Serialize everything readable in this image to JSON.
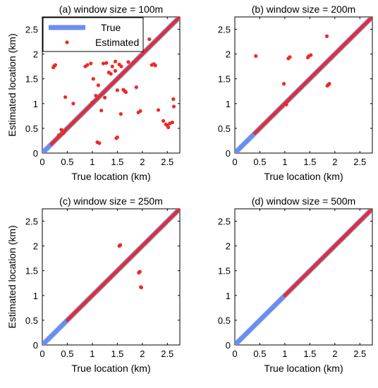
{
  "chart_data": [
    {
      "type": "scatter",
      "title": "(a) window size = 100m",
      "xlabel": "True location (km)",
      "ylabel": "Estimated location (km)",
      "xlim": [
        0,
        2.75
      ],
      "ylim": [
        0,
        2.75
      ],
      "xticks": [
        "0",
        "0.5",
        "1",
        "1.5",
        "2",
        "2.5"
      ],
      "yticks": [
        "0",
        "0.5",
        "1",
        "1.5",
        "2",
        "2.5"
      ],
      "legend": {
        "position": "top-left",
        "entries": [
          "True",
          "Estimated"
        ]
      },
      "true_line": {
        "name": "True",
        "x": [
          0,
          2.75
        ],
        "y": [
          0,
          2.75
        ],
        "color": "#6c8ef0"
      },
      "estimated_diagonal_segments": [
        [
          0.18,
          2.75
        ]
      ],
      "estimated_points": {
        "name": "Estimated",
        "color": "#ee2a24",
        "x": [
          0.22,
          0.24,
          0.26,
          0.33,
          0.38,
          0.46,
          0.62,
          0.86,
          0.9,
          0.97,
          1.02,
          1.07,
          1.1,
          1.18,
          1.22,
          1.28,
          1.33,
          1.4,
          1.46,
          1.5,
          1.54,
          1.58,
          1.62,
          1.65,
          1.67,
          1.57,
          1.5,
          1.48,
          1.25,
          1.46,
          1.14,
          1.72,
          1.88,
          1.92,
          1.96,
          2.14,
          2.19,
          2.23,
          2.26,
          2.32,
          2.42,
          2.47,
          2.5,
          2.52,
          2.55,
          2.6,
          2.62,
          2.63,
          1.0,
          0.42,
          1.12,
          1.37
        ],
        "y": [
          1.73,
          1.76,
          1.78,
          0.36,
          0.47,
          1.13,
          1.0,
          1.75,
          1.78,
          1.81,
          1.5,
          1.16,
          0.22,
          0.86,
          1.81,
          1.82,
          1.63,
          1.75,
          1.85,
          1.27,
          1.79,
          1.75,
          1.28,
          1.25,
          1.23,
          0.79,
          0.32,
          0.3,
          1.12,
          1.66,
          0.2,
          1.84,
          1.33,
          0.82,
          0.85,
          2.3,
          1.78,
          1.8,
          1.77,
          0.87,
          0.65,
          0.58,
          0.56,
          0.52,
          0.6,
          0.62,
          1.09,
          0.94,
          1.02,
          0.4,
          1.37,
          1.6
        ]
      }
    },
    {
      "type": "scatter",
      "title": "(b) window size = 200m",
      "xlabel": "True location (km)",
      "ylabel": "",
      "xlim": [
        0,
        2.75
      ],
      "ylim": [
        0,
        2.75
      ],
      "xticks": [
        "0",
        "0.5",
        "1",
        "1.5",
        "2",
        "2.5"
      ],
      "yticks": [
        "0",
        "0.5",
        "1",
        "1.5",
        "2",
        "2.5"
      ],
      "true_line": {
        "x": [
          0,
          2.75
        ],
        "y": [
          0,
          2.75
        ],
        "color": "#6c8ef0"
      },
      "estimated_diagonal_segments": [
        [
          0.4,
          2.75
        ]
      ],
      "estimated_points": {
        "color": "#ee2a24",
        "x": [
          0.42,
          0.98,
          1.03,
          1.05,
          1.07,
          1.1,
          1.46,
          1.48,
          1.52,
          1.84,
          1.85,
          1.87,
          1.89
        ],
        "y": [
          1.96,
          1.4,
          0.98,
          1.05,
          1.91,
          1.94,
          1.93,
          1.96,
          1.98,
          2.36,
          1.36,
          1.38,
          1.4
        ]
      }
    },
    {
      "type": "scatter",
      "title": "(c) window size = 250m",
      "xlabel": "True location (km)",
      "ylabel": "Estimated location (km)",
      "xlim": [
        0,
        2.75
      ],
      "ylim": [
        0,
        2.75
      ],
      "xticks": [
        "0",
        "0.5",
        "1",
        "1.5",
        "2",
        "2.5"
      ],
      "yticks": [
        "0",
        "0.5",
        "1",
        "1.5",
        "2",
        "2.5"
      ],
      "true_line": {
        "x": [
          0,
          2.75
        ],
        "y": [
          0,
          2.75
        ],
        "color": "#6c8ef0"
      },
      "estimated_diagonal_segments": [
        [
          0.5,
          2.75
        ]
      ],
      "estimated_points": {
        "color": "#ee2a24",
        "x": [
          1.54,
          1.56,
          1.93,
          1.95,
          1.97,
          1.98
        ],
        "y": [
          2.0,
          2.02,
          1.46,
          1.48,
          1.17,
          1.16
        ]
      }
    },
    {
      "type": "scatter",
      "title": "(d) window size = 500m",
      "xlabel": "True location (km)",
      "ylabel": "",
      "xlim": [
        0,
        2.75
      ],
      "ylim": [
        0,
        2.75
      ],
      "xticks": [
        "0",
        "0.5",
        "1",
        "1.5",
        "2",
        "2.5"
      ],
      "yticks": [
        "0",
        "0.5",
        "1",
        "1.5",
        "2",
        "2.5"
      ],
      "true_line": {
        "x": [
          0,
          2.75
        ],
        "y": [
          0,
          2.75
        ],
        "color": "#6c8ef0"
      },
      "estimated_diagonal_segments": [
        [
          1.0,
          2.75
        ]
      ],
      "estimated_points": {
        "color": "#ee2a24",
        "x": [],
        "y": []
      }
    }
  ]
}
